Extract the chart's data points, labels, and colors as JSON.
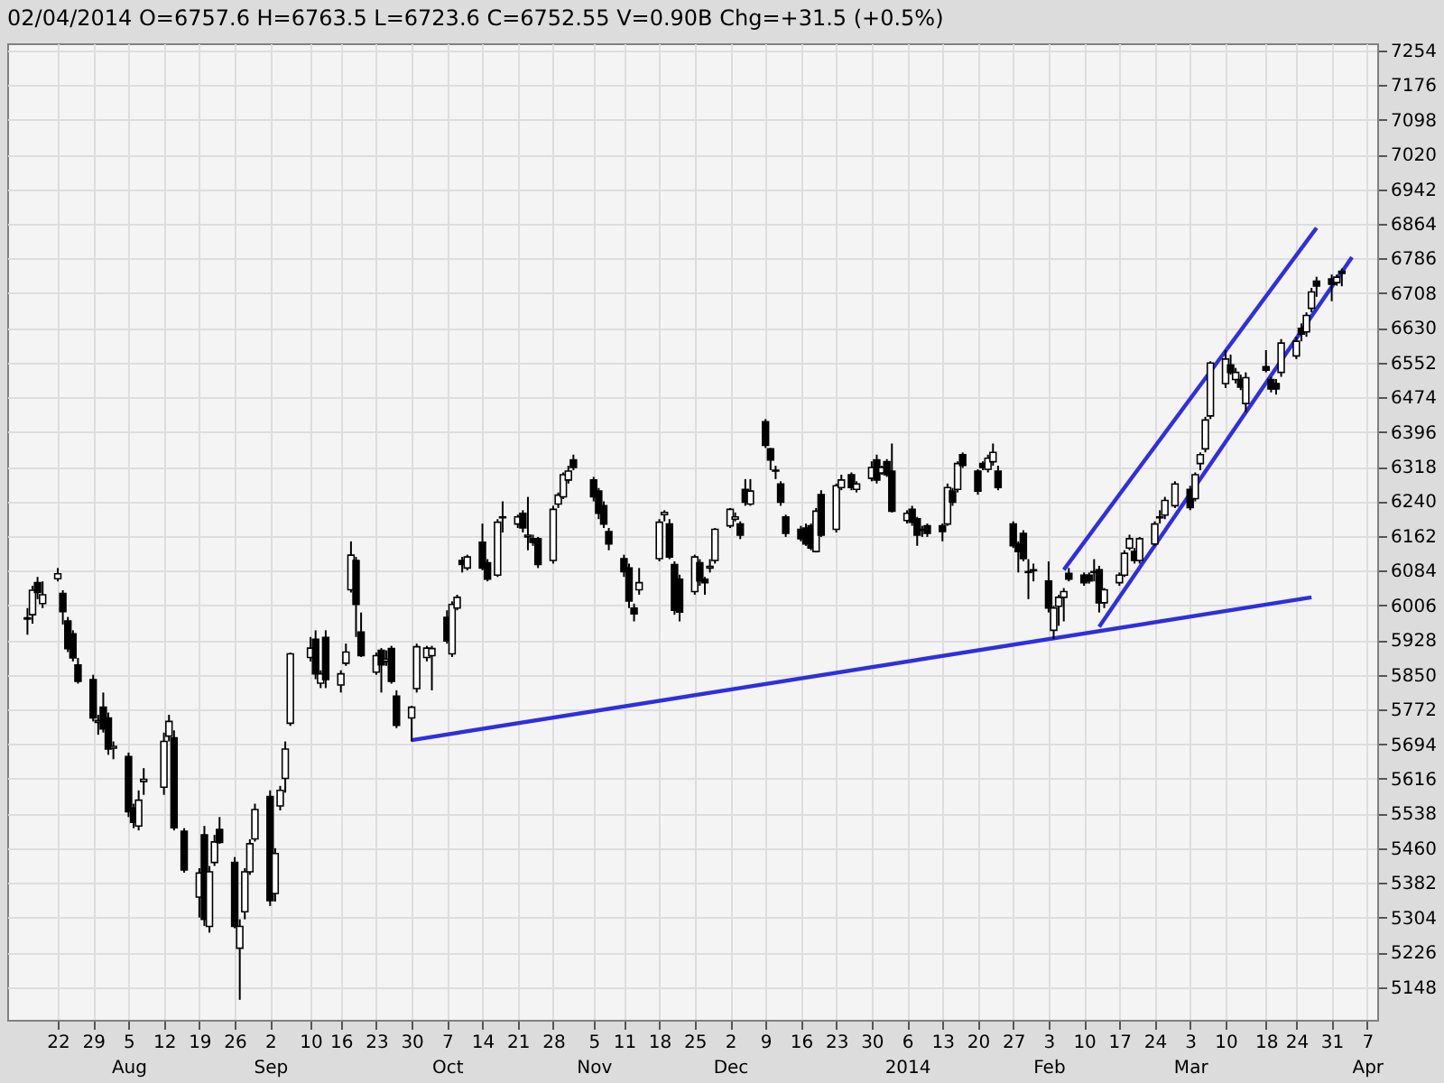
{
  "chart_data": {
    "type": "candlestick",
    "annotations": [
      "02/04/2014",
      "O=6757.6",
      "H=6763.5",
      "L=6723.6",
      "C=6752.55",
      "V=0.90B",
      "Chg=+31.5 (+0.5%)"
    ],
    "x": [
      "2013-07-16",
      "2013-07-17",
      "2013-07-18",
      "2013-07-19",
      "2013-07-22",
      "2013-07-23",
      "2013-07-24",
      "2013-07-25",
      "2013-07-26",
      "2013-07-29",
      "2013-07-30",
      "2013-07-31",
      "2013-08-01",
      "2013-08-02",
      "2013-08-05",
      "2013-08-06",
      "2013-08-07",
      "2013-08-08",
      "2013-08-12",
      "2013-08-13",
      "2013-08-14",
      "2013-08-16",
      "2013-08-19",
      "2013-08-20",
      "2013-08-21",
      "2013-08-22",
      "2013-08-23",
      "2013-08-26",
      "2013-08-27",
      "2013-08-28",
      "2013-08-29",
      "2013-08-30",
      "2013-09-02",
      "2013-09-03",
      "2013-09-04",
      "2013-09-05",
      "2013-09-06",
      "2013-09-10",
      "2013-09-11",
      "2013-09-12",
      "2013-09-13",
      "2013-09-16",
      "2013-09-17",
      "2013-09-18",
      "2013-09-19",
      "2013-09-20",
      "2013-09-23",
      "2013-09-24",
      "2013-09-25",
      "2013-09-26",
      "2013-09-27",
      "2013-09-30",
      "2013-10-01",
      "2013-10-03",
      "2013-10-04",
      "2013-10-07",
      "2013-10-08",
      "2013-10-09",
      "2013-10-10",
      "2013-10-11",
      "2013-10-14",
      "2013-10-15",
      "2013-10-17",
      "2013-10-18",
      "2013-10-21",
      "2013-10-22",
      "2013-10-23",
      "2013-10-24",
      "2013-10-25",
      "2013-10-28",
      "2013-10-29",
      "2013-10-30",
      "2013-10-31",
      "2013-11-01",
      "2013-11-05",
      "2013-11-06",
      "2013-11-07",
      "2013-11-08",
      "2013-11-11",
      "2013-11-12",
      "2013-11-13",
      "2013-11-14",
      "2013-11-18",
      "2013-11-19",
      "2013-11-20",
      "2013-11-21",
      "2013-11-22",
      "2013-11-25",
      "2013-11-26",
      "2013-11-27",
      "2013-11-28",
      "2013-11-29",
      "2013-12-02",
      "2013-12-03",
      "2013-12-04",
      "2013-12-05",
      "2013-12-06",
      "2013-12-09",
      "2013-12-10",
      "2013-12-11",
      "2013-12-12",
      "2013-12-13",
      "2013-12-16",
      "2013-12-17",
      "2013-12-18",
      "2013-12-19",
      "2013-12-20",
      "2013-12-23",
      "2013-12-24",
      "2013-12-26",
      "2013-12-27",
      "2013-12-30",
      "2013-12-31",
      "2014-01-01",
      "2014-01-02",
      "2014-01-03",
      "2014-01-06",
      "2014-01-07",
      "2014-01-08",
      "2014-01-09",
      "2014-01-10",
      "2014-01-13",
      "2014-01-14",
      "2014-01-15",
      "2014-01-16",
      "2014-01-17",
      "2014-01-20",
      "2014-01-21",
      "2014-01-22",
      "2014-01-23",
      "2014-01-24",
      "2014-01-27",
      "2014-01-28",
      "2014-01-29",
      "2014-01-30",
      "2014-01-31",
      "2014-02-03",
      "2014-02-04",
      "2014-02-05",
      "2014-02-06",
      "2014-02-07",
      "2014-02-10",
      "2014-02-11",
      "2014-02-12",
      "2014-02-13",
      "2014-02-14",
      "2014-02-17",
      "2014-02-18",
      "2014-02-19",
      "2014-02-20",
      "2014-02-21",
      "2014-02-24",
      "2014-02-25",
      "2014-02-26",
      "2014-02-28",
      "2014-03-03",
      "2014-03-04",
      "2014-03-05",
      "2014-03-06",
      "2014-03-07",
      "2014-03-10",
      "2014-03-11",
      "2014-03-12",
      "2014-03-13",
      "2014-03-14",
      "2014-03-18",
      "2014-03-19",
      "2014-03-20",
      "2014-03-21",
      "2014-03-24",
      "2014-03-25",
      "2014-03-26",
      "2014-03-27",
      "2014-03-28",
      "2014-03-31",
      "2014-04-01",
      "2014-04-02"
    ],
    "ohlc": [
      [
        5975,
        6000,
        5940,
        5978
      ],
      [
        5985,
        6050,
        5965,
        6040
      ],
      [
        6057,
        6070,
        6020,
        6035
      ],
      [
        6010,
        6060,
        6000,
        6030
      ],
      [
        6066,
        6090,
        6060,
        6077
      ],
      [
        6033,
        6040,
        5963,
        5992
      ],
      [
        5971,
        5980,
        5901,
        5909
      ],
      [
        5942,
        5950,
        5880,
        5888
      ],
      [
        5872,
        5888,
        5830,
        5835
      ],
      [
        5839,
        5850,
        5745,
        5753
      ],
      [
        5743,
        5760,
        5715,
        5747
      ],
      [
        5777,
        5810,
        5720,
        5728
      ],
      [
        5753,
        5765,
        5670,
        5683
      ],
      [
        5685,
        5700,
        5660,
        5689
      ],
      [
        5666,
        5675,
        5530,
        5542
      ],
      [
        5550,
        5560,
        5505,
        5518
      ],
      [
        5510,
        5590,
        5500,
        5568
      ],
      [
        5610,
        5640,
        5580,
        5615
      ],
      [
        5597,
        5720,
        5580,
        5700
      ],
      [
        5712,
        5760,
        5700,
        5745
      ],
      [
        5708,
        5725,
        5500,
        5506
      ],
      [
        5498,
        5505,
        5405,
        5411
      ],
      [
        5350,
        5415,
        5304,
        5404
      ],
      [
        5490,
        5510,
        5285,
        5300
      ],
      [
        5284,
        5420,
        5270,
        5407
      ],
      [
        5428,
        5490,
        5420,
        5474
      ],
      [
        5502,
        5530,
        5470,
        5473
      ],
      [
        5428,
        5440,
        5280,
        5284
      ],
      [
        5235,
        5300,
        5119,
        5284
      ],
      [
        5317,
        5415,
        5300,
        5407
      ],
      [
        5407,
        5480,
        5400,
        5470
      ],
      [
        5481,
        5560,
        5475,
        5547
      ],
      [
        5576,
        5590,
        5330,
        5342
      ],
      [
        5358,
        5460,
        5340,
        5448
      ],
      [
        5555,
        5600,
        5545,
        5590
      ],
      [
        5617,
        5700,
        5585,
        5683
      ],
      [
        5741,
        5900,
        5735,
        5897
      ],
      [
        5889,
        5935,
        5880,
        5910
      ],
      [
        5930,
        5950,
        5840,
        5852
      ],
      [
        5831,
        5860,
        5820,
        5852
      ],
      [
        5934,
        5950,
        5820,
        5839
      ],
      [
        5827,
        5860,
        5810,
        5852
      ],
      [
        5876,
        5920,
        5870,
        5901
      ],
      [
        6041,
        6150,
        6035,
        6119
      ],
      [
        6107,
        6115,
        5935,
        6008
      ],
      [
        5946,
        5990,
        5890,
        5893
      ],
      [
        5856,
        5900,
        5850,
        5893
      ],
      [
        5905,
        5910,
        5810,
        5872
      ],
      [
        5880,
        5905,
        5870,
        5885
      ],
      [
        5909,
        5915,
        5830,
        5835
      ],
      [
        5802,
        5815,
        5730,
        5736
      ],
      [
        5753,
        5780,
        5700,
        5777
      ],
      [
        5819,
        5920,
        5810,
        5913
      ],
      [
        5889,
        5915,
        5880,
        5910
      ],
      [
        5893,
        5915,
        5815,
        5909
      ],
      [
        5979,
        5995,
        5920,
        5926
      ],
      [
        5897,
        6015,
        5890,
        6008
      ],
      [
        6000,
        6030,
        5995,
        6024
      ],
      [
        6107,
        6115,
        6080,
        6098
      ],
      [
        6090,
        6120,
        6085,
        6115
      ],
      [
        6148,
        6190,
        6085,
        6090
      ],
      [
        6102,
        6110,
        6060,
        6065
      ],
      [
        6074,
        6200,
        6070,
        6193
      ],
      [
        6203,
        6240,
        6170,
        6205
      ],
      [
        6189,
        6210,
        6180,
        6205
      ],
      [
        6213,
        6220,
        6170,
        6180
      ],
      [
        6160,
        6250,
        6130,
        6164
      ],
      [
        6156,
        6165,
        6140,
        6148
      ],
      [
        6156,
        6160,
        6090,
        6098
      ],
      [
        6107,
        6230,
        6100,
        6222
      ],
      [
        6234,
        6260,
        6225,
        6254
      ],
      [
        6250,
        6305,
        6245,
        6300
      ],
      [
        6288,
        6320,
        6280,
        6308
      ],
      [
        6333,
        6345,
        6310,
        6316
      ],
      [
        6288,
        6295,
        6240,
        6250
      ],
      [
        6263,
        6270,
        6200,
        6213
      ],
      [
        6230,
        6240,
        6180,
        6189
      ],
      [
        6172,
        6180,
        6130,
        6144
      ],
      [
        6111,
        6120,
        6070,
        6082
      ],
      [
        6090,
        6100,
        6000,
        6016
      ],
      [
        6000,
        6010,
        5970,
        5987
      ],
      [
        6041,
        6090,
        6030,
        6057
      ],
      [
        6111,
        6200,
        6105,
        6193
      ],
      [
        6210,
        6220,
        6195,
        6215
      ],
      [
        6189,
        6200,
        6110,
        6115
      ],
      [
        6098,
        6105,
        5985,
        5995
      ],
      [
        6065,
        6075,
        5970,
        5991
      ],
      [
        6037,
        6120,
        6030,
        6115
      ],
      [
        6102,
        6110,
        6050,
        6061
      ],
      [
        6065,
        6070,
        6030,
        6057
      ],
      [
        6090,
        6110,
        6080,
        6094
      ],
      [
        6107,
        6180,
        6100,
        6177
      ],
      [
        6185,
        6225,
        6180,
        6222
      ],
      [
        6200,
        6215,
        6195,
        6205
      ],
      [
        6189,
        6195,
        6155,
        6164
      ],
      [
        6267,
        6290,
        6230,
        6238
      ],
      [
        6234,
        6290,
        6230,
        6263
      ],
      [
        6419,
        6425,
        6360,
        6366
      ],
      [
        6358,
        6360,
        6310,
        6333
      ],
      [
        6310,
        6320,
        6290,
        6308
      ],
      [
        6279,
        6285,
        6230,
        6238
      ],
      [
        6205,
        6210,
        6160,
        6168
      ],
      [
        6177,
        6185,
        6150,
        6156
      ],
      [
        6180,
        6190,
        6140,
        6144
      ],
      [
        6185,
        6190,
        6130,
        6135
      ],
      [
        6127,
        6225,
        6125,
        6218
      ],
      [
        6255,
        6265,
        6160,
        6164
      ],
      [
        6177,
        6280,
        6170,
        6275
      ],
      [
        6271,
        6300,
        6265,
        6288
      ],
      [
        6300,
        6305,
        6265,
        6271
      ],
      [
        6267,
        6285,
        6260,
        6279
      ],
      [
        6292,
        6330,
        6285,
        6316
      ],
      [
        6333,
        6345,
        6280,
        6288
      ],
      [
        6304,
        6320,
        6300,
        6316
      ],
      [
        6329,
        6335,
        6295,
        6300
      ],
      [
        6308,
        6370,
        6215,
        6218
      ],
      [
        6197,
        6220,
        6190,
        6213
      ],
      [
        6222,
        6230,
        6185,
        6193
      ],
      [
        6201,
        6205,
        6140,
        6164
      ],
      [
        6175,
        6185,
        6160,
        6177
      ],
      [
        6185,
        6190,
        6160,
        6168
      ],
      [
        6185,
        6190,
        6150,
        6172
      ],
      [
        6189,
        6280,
        6185,
        6271
      ],
      [
        6263,
        6270,
        6230,
        6238
      ],
      [
        6267,
        6330,
        6260,
        6325
      ],
      [
        6345,
        6350,
        6315,
        6321
      ],
      [
        6308,
        6312,
        6255,
        6263
      ],
      [
        6325,
        6330,
        6310,
        6316
      ],
      [
        6312,
        6345,
        6305,
        6337
      ],
      [
        6329,
        6370,
        6320,
        6350
      ],
      [
        6308,
        6320,
        6265,
        6271
      ],
      [
        6189,
        6195,
        6135,
        6140
      ],
      [
        6144,
        6150,
        6080,
        6127
      ],
      [
        6168,
        6175,
        6105,
        6111
      ],
      [
        6080,
        6110,
        6020,
        6082
      ],
      [
        6084,
        6100,
        6060,
        6086
      ],
      [
        6061,
        6105,
        5990,
        6000
      ],
      [
        5950,
        6005,
        5930,
        6000
      ],
      [
        6004,
        6030,
        5960,
        6024
      ],
      [
        6024,
        6045,
        5970,
        6037
      ],
      [
        6078,
        6090,
        6060,
        6065
      ],
      [
        6074,
        6080,
        6050,
        6057
      ],
      [
        6074,
        6080,
        6055,
        6061
      ],
      [
        6080,
        6110,
        6060,
        6082
      ],
      [
        6086,
        6095,
        5990,
        6012
      ],
      [
        6012,
        6045,
        6000,
        6041
      ],
      [
        6057,
        6080,
        6050,
        6074
      ],
      [
        6074,
        6130,
        6070,
        6123
      ],
      [
        6135,
        6165,
        6130,
        6156
      ],
      [
        6127,
        6135,
        6100,
        6107
      ],
      [
        6107,
        6160,
        6100,
        6156
      ],
      [
        6144,
        6195,
        6140,
        6189
      ],
      [
        6203,
        6220,
        6190,
        6205
      ],
      [
        6209,
        6250,
        6200,
        6242
      ],
      [
        6230,
        6285,
        6225,
        6279
      ],
      [
        6267,
        6275,
        6220,
        6226
      ],
      [
        6246,
        6305,
        6240,
        6300
      ],
      [
        6325,
        6350,
        6310,
        6345
      ],
      [
        6358,
        6430,
        6350,
        6423
      ],
      [
        6432,
        6555,
        6425,
        6551
      ],
      [
        6505,
        6580,
        6495,
        6560
      ],
      [
        6547,
        6570,
        6525,
        6530
      ],
      [
        6514,
        6540,
        6505,
        6530
      ],
      [
        6514,
        6525,
        6490,
        6497
      ],
      [
        6460,
        6530,
        6440,
        6518
      ],
      [
        6543,
        6580,
        6530,
        6535
      ],
      [
        6514,
        6520,
        6485,
        6493
      ],
      [
        6505,
        6515,
        6480,
        6493
      ],
      [
        6530,
        6605,
        6520,
        6596
      ],
      [
        6567,
        6610,
        6560,
        6600
      ],
      [
        6629,
        6640,
        6600,
        6616
      ],
      [
        6621,
        6665,
        6610,
        6658
      ],
      [
        6674,
        6720,
        6665,
        6711
      ],
      [
        6735,
        6745,
        6700,
        6724
      ],
      [
        6740,
        6750,
        6690,
        6728
      ],
      [
        6732,
        6750,
        6725,
        6744
      ],
      [
        6757.6,
        6763.5,
        6723.6,
        6752.55
      ]
    ],
    "series": [
      {
        "type": "line",
        "color": "#2f2fe0",
        "x": [
          "2013-09-30",
          "2014-03-27"
        ],
        "values": [
          5703,
          6024
        ]
      },
      {
        "type": "line",
        "color": "#2f2fe0",
        "x": [
          "2014-02-06",
          "2014-03-28"
        ],
        "values": [
          6086,
          6855
        ]
      },
      {
        "type": "line",
        "color": "#2f2fe0",
        "x": [
          "2014-02-13",
          "2014-04-04"
        ],
        "values": [
          5958,
          6789
        ]
      }
    ],
    "xlim": [
      "2013-07-12",
      "2014-04-09"
    ],
    "ylim": [
      5074,
      7270
    ],
    "xticks": [
      {
        "value": "2013-07-22",
        "label": "22"
      },
      {
        "value": "2013-07-29",
        "label": "29"
      },
      {
        "value": "2013-08-05",
        "label": "5\nAug"
      },
      {
        "value": "2013-08-12",
        "label": "12"
      },
      {
        "value": "2013-08-19",
        "label": "19"
      },
      {
        "value": "2013-08-26",
        "label": "26"
      },
      {
        "value": "2013-09-02",
        "label": "2\nSep"
      },
      {
        "value": "2013-09-10",
        "label": "10"
      },
      {
        "value": "2013-09-16",
        "label": "16"
      },
      {
        "value": "2013-09-23",
        "label": "23"
      },
      {
        "value": "2013-09-30",
        "label": "30"
      },
      {
        "value": "2013-10-07",
        "label": "7\nOct"
      },
      {
        "value": "2013-10-14",
        "label": "14"
      },
      {
        "value": "2013-10-21",
        "label": "21"
      },
      {
        "value": "2013-10-28",
        "label": "28"
      },
      {
        "value": "2013-11-05",
        "label": "5\nNov"
      },
      {
        "value": "2013-11-11",
        "label": "11"
      },
      {
        "value": "2013-11-18",
        "label": "18"
      },
      {
        "value": "2013-11-25",
        "label": "25"
      },
      {
        "value": "2013-12-02",
        "label": "2\nDec"
      },
      {
        "value": "2013-12-09",
        "label": "9"
      },
      {
        "value": "2013-12-16",
        "label": "16"
      },
      {
        "value": "2013-12-23",
        "label": "23"
      },
      {
        "value": "2013-12-30",
        "label": "30"
      },
      {
        "value": "2014-01-06",
        "label": "6\n2014"
      },
      {
        "value": "2014-01-13",
        "label": "13"
      },
      {
        "value": "2014-01-20",
        "label": "20"
      },
      {
        "value": "2014-01-27",
        "label": "27"
      },
      {
        "value": "2014-02-03",
        "label": "3\nFeb"
      },
      {
        "value": "2014-02-10",
        "label": "10"
      },
      {
        "value": "2014-02-17",
        "label": "17"
      },
      {
        "value": "2014-02-24",
        "label": "24"
      },
      {
        "value": "2014-03-03",
        "label": "3\nMar"
      },
      {
        "value": "2014-03-10",
        "label": "10"
      },
      {
        "value": "2014-03-18",
        "label": "18"
      },
      {
        "value": "2014-03-24",
        "label": "24"
      },
      {
        "value": "2014-03-31",
        "label": "31"
      },
      {
        "value": "2014-04-07",
        "label": "7\nApr"
      }
    ],
    "yticks": [
      5148,
      5226,
      5304,
      5382,
      5460,
      5538,
      5616,
      5694,
      5772,
      5850,
      5928,
      6006,
      6084,
      6162,
      6240,
      6318,
      6396,
      6474,
      6552,
      6630,
      6708,
      6786,
      6864,
      6942,
      7020,
      7098,
      7176,
      7254
    ],
    "grid": true
  }
}
